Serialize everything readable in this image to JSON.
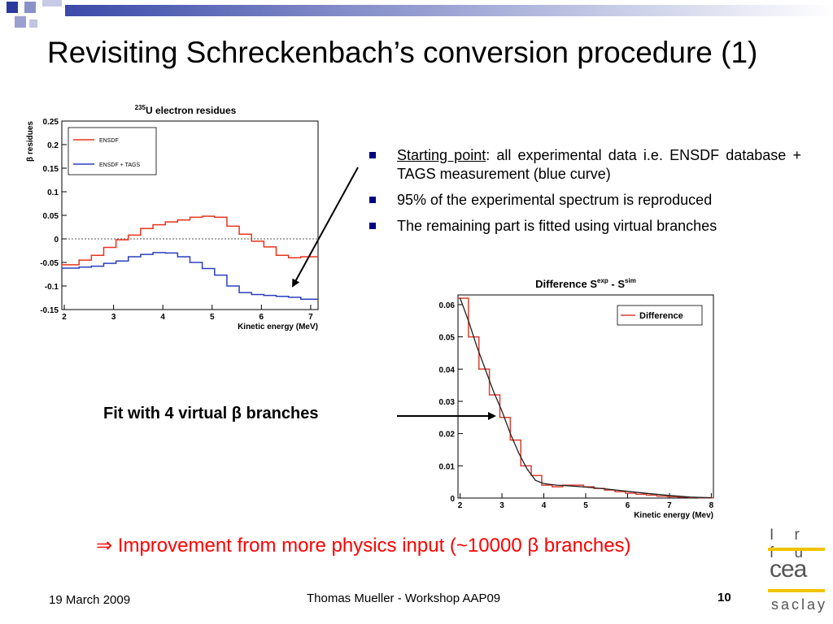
{
  "title": "Revisiting Schreckenbach’s conversion procedure (1)",
  "bullets": [
    {
      "underlined": "Starting point",
      "rest": ": all experimental data i.e. ENSDF database + TAGS measurement (blue curve)"
    },
    {
      "underlined": "",
      "rest": "95% of the experimental spectrum is reproduced"
    },
    {
      "underlined": "",
      "rest": "The remaining part is fitted using virtual branches"
    }
  ],
  "fit_label": "Fit with 4 virtual β branches",
  "improvement": "⇒ Improvement from more physics input (~10000 β branches)",
  "footer": {
    "date": "19 March 2009",
    "center": "Thomas Mueller - Workshop AAP09",
    "page": "10"
  },
  "logos": {
    "irfu": "Irfu",
    "cea": "cea",
    "saclay": "saclay"
  },
  "colors": {
    "bullet": "#000080",
    "ensdf": "#e8341c",
    "tags": "#2b3fbf",
    "difference": "#d94030",
    "fit": "#222222",
    "improvement": "#ff0000"
  },
  "chart_data": [
    {
      "type": "line",
      "title": "235U electron residues",
      "title_sup": "235",
      "title_main": "U electron residues",
      "xlabel": "Kinetic energy (MeV)",
      "ylabel": "β residues",
      "xlim": [
        1.95,
        7.15
      ],
      "ylim": [
        -0.15,
        0.25
      ],
      "xticks": [
        2,
        3,
        4,
        5,
        6,
        7
      ],
      "yticks": [
        -0.15,
        -0.1,
        -0.05,
        0,
        0.05,
        0.1,
        0.15,
        0.2,
        0.25
      ],
      "ytick_labels": [
        "-0.15",
        "-0.1",
        "-0.05",
        "0",
        "0.05",
        "0.1",
        "0.15",
        "0.2",
        "0.25"
      ],
      "zero_line": true,
      "legend": {
        "position": "top-left"
      },
      "series": [
        {
          "name": "ENSDF",
          "color": "#e8341c",
          "x": [
            1.95,
            2.3,
            2.55,
            2.8,
            3.05,
            3.3,
            3.55,
            3.8,
            4.05,
            4.3,
            4.55,
            4.8,
            5.05,
            5.3,
            5.55,
            5.8,
            6.05,
            6.3,
            6.55,
            6.8,
            7.15
          ],
          "y": [
            -0.055,
            -0.045,
            -0.035,
            -0.018,
            -0.002,
            0.008,
            0.022,
            0.03,
            0.036,
            0.04,
            0.046,
            0.048,
            0.046,
            0.027,
            0.01,
            -0.005,
            -0.017,
            -0.035,
            -0.04,
            -0.038,
            -0.02
          ]
        },
        {
          "name": "ENSDF + TAGS",
          "color": "#2b3fbf",
          "x": [
            1.95,
            2.3,
            2.55,
            2.8,
            3.05,
            3.3,
            3.55,
            3.8,
            4.05,
            4.3,
            4.55,
            4.8,
            5.05,
            5.3,
            5.55,
            5.8,
            6.05,
            6.3,
            6.55,
            6.8,
            7.15
          ],
          "y": [
            -0.062,
            -0.06,
            -0.058,
            -0.052,
            -0.047,
            -0.038,
            -0.033,
            -0.029,
            -0.03,
            -0.038,
            -0.05,
            -0.063,
            -0.077,
            -0.1,
            -0.114,
            -0.118,
            -0.12,
            -0.122,
            -0.124,
            -0.128,
            -0.132
          ]
        }
      ]
    },
    {
      "type": "line",
      "title": "Difference Sexp - Ssim",
      "title_parts": [
        "Difference S",
        "exp",
        " - S",
        "sim"
      ],
      "xlabel": "Kinetic energy (Mev)",
      "ylabel": "",
      "xlim": [
        1.95,
        8.05
      ],
      "ylim": [
        0,
        0.063
      ],
      "xticks": [
        2,
        3,
        4,
        5,
        6,
        7,
        8
      ],
      "yticks": [
        0,
        0.01,
        0.02,
        0.03,
        0.04,
        0.05,
        0.06
      ],
      "ytick_labels": [
        "0",
        "0.01",
        "0.02",
        "0.03",
        "0.04",
        "0.05",
        "0.06"
      ],
      "legend": {
        "position": "top-right"
      },
      "series": [
        {
          "name": "Difference",
          "color": "#d94030",
          "style": "histogram",
          "x": [
            1.95,
            2.2,
            2.45,
            2.7,
            2.95,
            3.2,
            3.45,
            3.7,
            3.95,
            4.2,
            4.45,
            4.7,
            4.95,
            5.2,
            5.45,
            5.7,
            5.95,
            6.2,
            6.45,
            6.7,
            6.95,
            7.2,
            7.45,
            7.7,
            8.05
          ],
          "y": [
            0.062,
            0.05,
            0.04,
            0.032,
            0.025,
            0.018,
            0.01,
            0.007,
            0.004,
            0.0035,
            0.004,
            0.004,
            0.0035,
            0.003,
            0.0025,
            0.002,
            0.0015,
            0.0012,
            0.0009,
            0.0006,
            0.0004,
            0.0003,
            0.0002,
            0.0001,
            0.0001
          ]
        },
        {
          "name": "",
          "color": "#222222",
          "style": "smooth",
          "x": [
            2.0,
            2.2,
            2.4,
            2.6,
            2.8,
            3.0,
            3.2,
            3.4,
            3.6,
            3.8,
            4.0,
            4.3,
            4.6,
            5.0,
            5.5,
            6.0,
            6.5,
            7.0,
            7.5,
            8.0
          ],
          "y": [
            0.062,
            0.055,
            0.047,
            0.04,
            0.033,
            0.027,
            0.02,
            0.014,
            0.009,
            0.0055,
            0.0045,
            0.004,
            0.0038,
            0.0034,
            0.0028,
            0.0021,
            0.0014,
            0.0008,
            0.0003,
            0.0001
          ]
        }
      ]
    }
  ]
}
